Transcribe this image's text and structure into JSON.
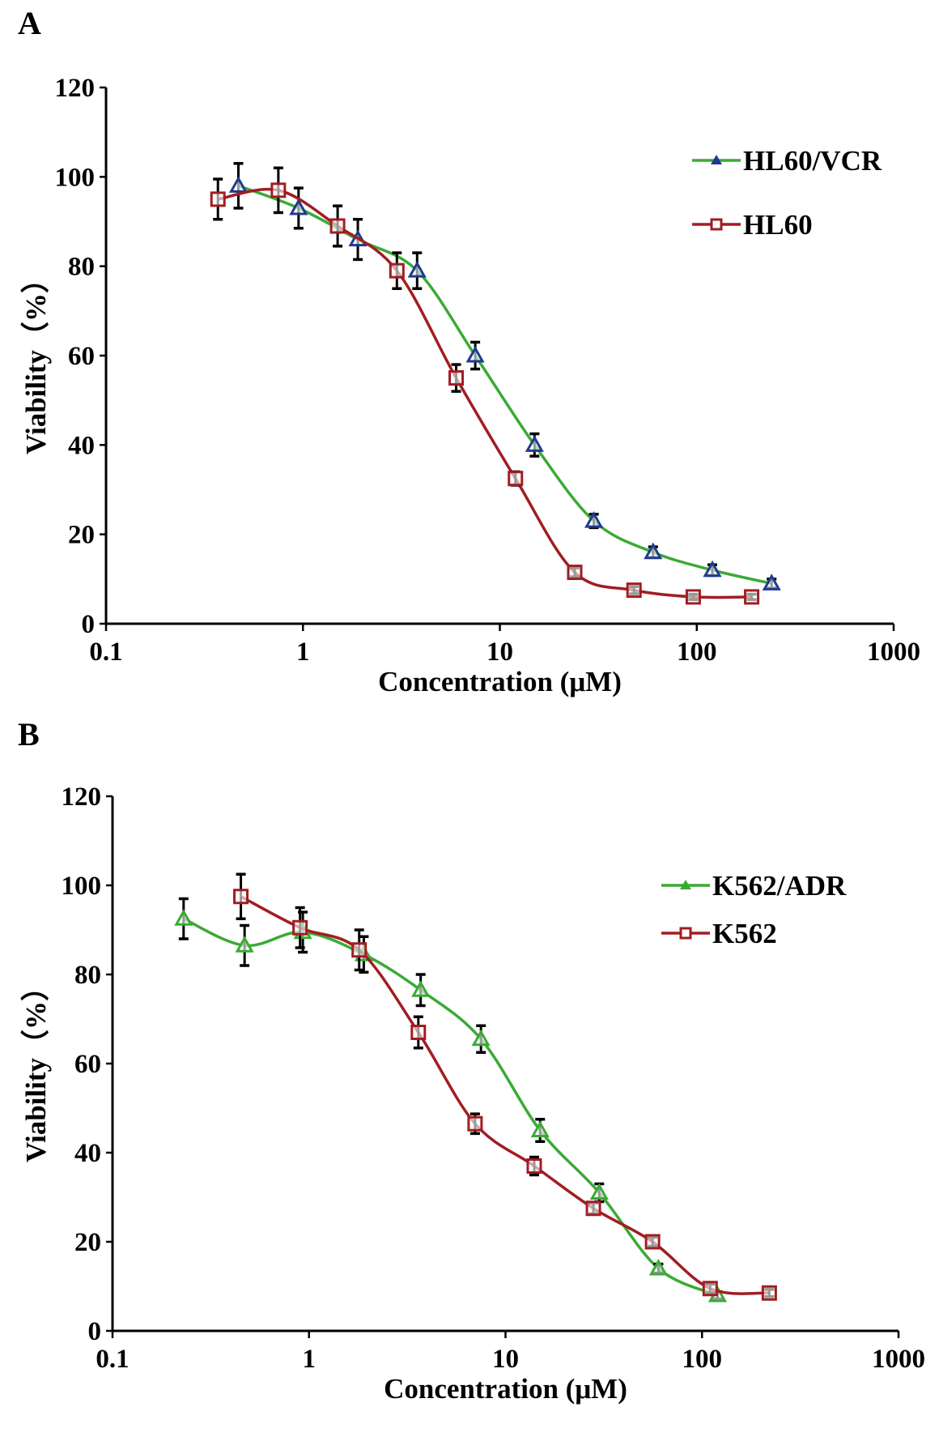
{
  "colors": {
    "resistant_line": "#3aaa35",
    "sensitive_line": "#a11d21",
    "marker_a_triangle": "#1f3a8f",
    "error_bar": "#000000"
  },
  "chart_data": [
    {
      "panel_label": "A",
      "type": "line",
      "xlabel": "Concentration (μM)",
      "ylabel": "Viability（%）",
      "xscale": "log",
      "xlim": [
        0.1,
        1000
      ],
      "ylim": [
        0,
        120
      ],
      "xticks": [
        "0.1",
        "1",
        "10",
        "100",
        "1000"
      ],
      "yticks": [
        "0",
        "20",
        "40",
        "60",
        "80",
        "100",
        "120"
      ],
      "grid": false,
      "legend_position": "top-right",
      "series": [
        {
          "name": "HL60/VCR",
          "marker": "triangle",
          "x": [
            0.47,
            0.95,
            1.9,
            3.8,
            7.5,
            15,
            30,
            60,
            120,
            240
          ],
          "y": [
            98,
            93,
            86,
            79,
            60,
            40,
            23,
            16,
            12,
            9
          ],
          "err": [
            5,
            4.5,
            4.5,
            4,
            3,
            2.5,
            1.5,
            1.2,
            1.2,
            1
          ]
        },
        {
          "name": "HL60",
          "marker": "square",
          "x": [
            0.37,
            0.75,
            1.5,
            3,
            6,
            12,
            24,
            48,
            96,
            190
          ],
          "y": [
            95,
            97,
            89,
            79,
            55,
            32.5,
            11.5,
            7.5,
            6,
            6
          ],
          "err": [
            4.5,
            5,
            4.5,
            4,
            3,
            1.5,
            1,
            0.8,
            0.6,
            0.6
          ]
        }
      ]
    },
    {
      "panel_label": "B",
      "type": "line",
      "xlabel": "Concentration (μM)",
      "ylabel": "Viability（%）",
      "xscale": "log",
      "xlim": [
        0.1,
        1000
      ],
      "ylim": [
        0,
        120
      ],
      "xticks": [
        "0.1",
        "1",
        "10",
        "100",
        "1000"
      ],
      "yticks": [
        "0",
        "20",
        "40",
        "60",
        "80",
        "100",
        "120"
      ],
      "grid": false,
      "legend_position": "top-right",
      "series": [
        {
          "name": "K562/ADR",
          "marker": "triangle",
          "x": [
            0.23,
            0.47,
            0.93,
            1.9,
            3.7,
            7.5,
            15,
            30,
            60,
            120
          ],
          "y": [
            92.5,
            86.5,
            89.5,
            84.5,
            76.5,
            65.5,
            45,
            31,
            14,
            8
          ],
          "err": [
            4.5,
            4.5,
            4.5,
            4,
            3.5,
            3,
            2.5,
            2,
            1,
            0.8
          ]
        },
        {
          "name": "K562",
          "marker": "square",
          "x": [
            0.45,
            0.9,
            1.8,
            3.6,
            7,
            14,
            28,
            56,
            110,
            220
          ],
          "y": [
            97.5,
            90.5,
            85.5,
            67,
            46.5,
            37,
            27.5,
            20,
            9.5,
            8.5
          ],
          "err": [
            5,
            4.5,
            4.5,
            3.5,
            2.2,
            2,
            1.2,
            1,
            1,
            0.8
          ]
        }
      ]
    }
  ]
}
